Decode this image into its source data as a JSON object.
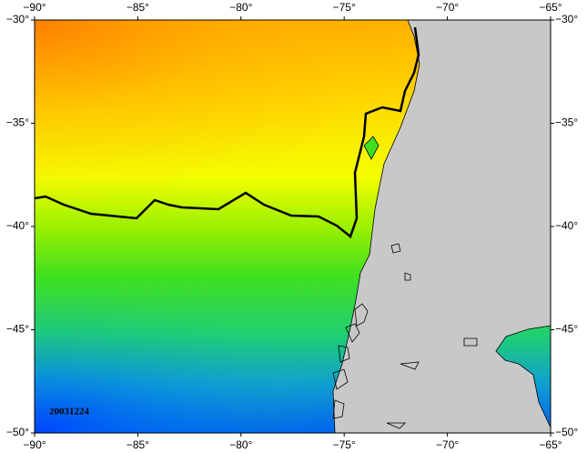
{
  "map": {
    "xlim": [
      -90,
      -65
    ],
    "ylim": [
      -50,
      -30
    ],
    "xticks": [
      {
        "value": -90,
        "label": "−90°"
      },
      {
        "value": -85,
        "label": "−85°"
      },
      {
        "value": -80,
        "label": "−80°"
      },
      {
        "value": -75,
        "label": "−75°"
      },
      {
        "value": -70,
        "label": "−70°"
      },
      {
        "value": -65,
        "label": "−65°"
      }
    ],
    "yticks": [
      {
        "value": -30,
        "label": "−30°"
      },
      {
        "value": -35,
        "label": "−35°"
      },
      {
        "value": -40,
        "label": "−40°"
      },
      {
        "value": -45,
        "label": "−45°"
      },
      {
        "value": -50,
        "label": "−50°"
      }
    ],
    "date_label": "20031224"
  }
}
